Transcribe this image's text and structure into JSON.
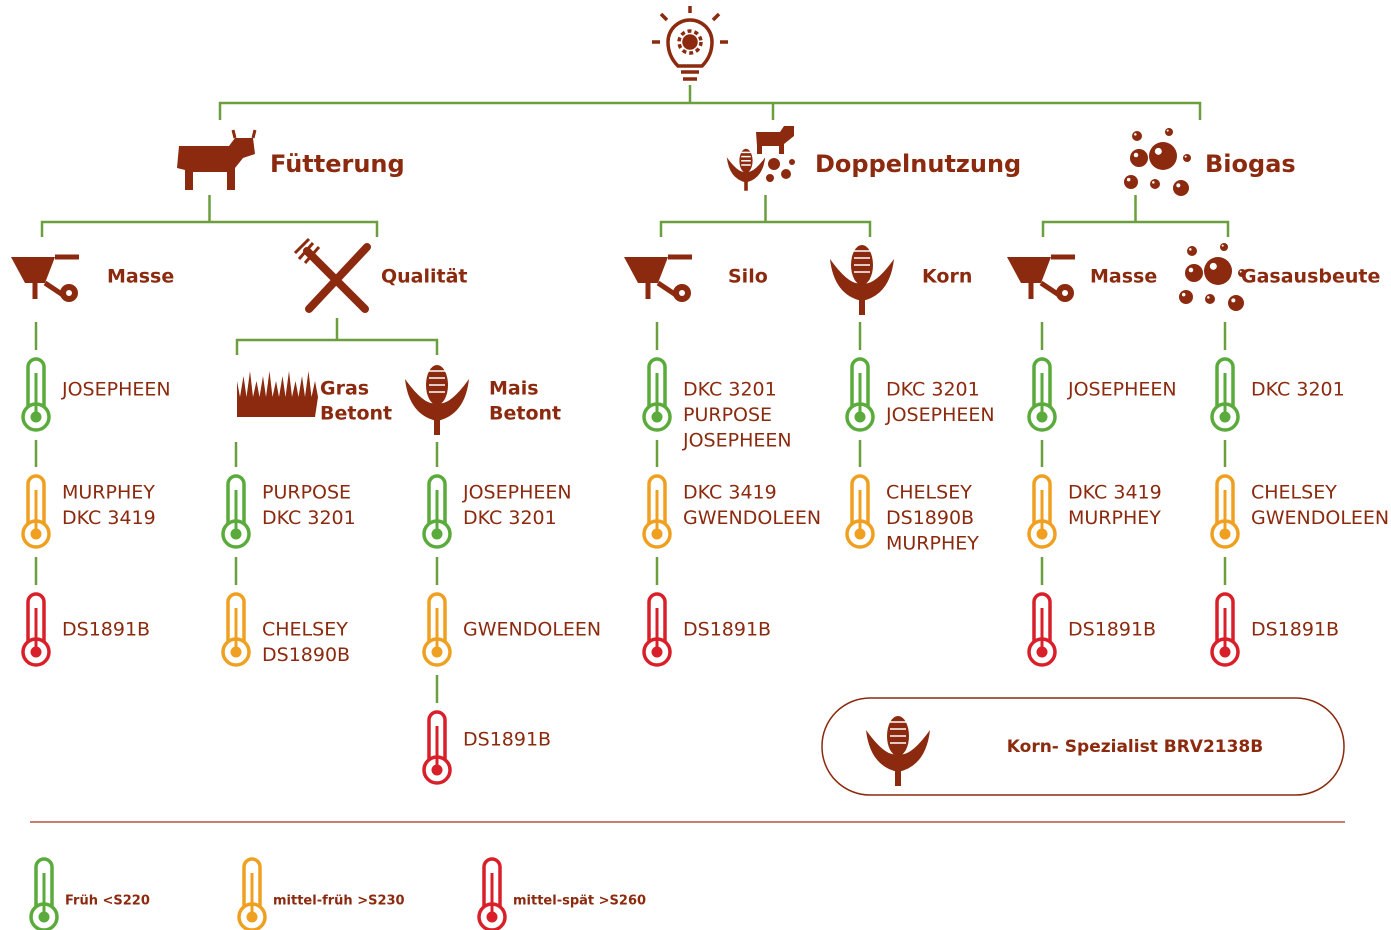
{
  "tree": [
    {
      "label": "Fütterung",
      "children": [
        {
          "label": "Masse",
          "entries": [
            {
              "color": "#5aab3c",
              "lines": [
                "JOSEPHEEN"
              ]
            },
            {
              "color": "#f0a020",
              "lines": [
                "MURPHEY",
                "DKC 3419"
              ]
            },
            {
              "color": "#d9202a",
              "lines": [
                "DS1891B"
              ]
            }
          ]
        },
        {
          "label": "Qualität",
          "children": [
            {
              "label": [
                "Gras",
                "Betont"
              ],
              "entries": [
                {
                  "color": "#5aab3c",
                  "lines": [
                    "PURPOSE",
                    "DKC 3201"
                  ]
                },
                {
                  "color": "#f0a020",
                  "lines": [
                    "CHELSEY",
                    "DS1890B"
                  ]
                }
              ]
            },
            {
              "label": [
                "Mais",
                "Betont"
              ],
              "entries": [
                {
                  "color": "#5aab3c",
                  "lines": [
                    "JOSEPHEEN",
                    "DKC 3201"
                  ]
                },
                {
                  "color": "#f0a020",
                  "lines": [
                    "GWENDOLEEN"
                  ]
                },
                {
                  "color": "#d9202a",
                  "lines": [
                    "DS1891B"
                  ]
                }
              ]
            }
          ]
        }
      ]
    },
    {
      "label": "Doppelnutzung",
      "children": [
        {
          "label": "Silo",
          "entries": [
            {
              "color": "#5aab3c",
              "lines": [
                "DKC 3201",
                "PURPOSE",
                "JOSEPHEEN"
              ]
            },
            {
              "color": "#f0a020",
              "lines": [
                "DKC 3419",
                "GWENDOLEEN"
              ]
            },
            {
              "color": "#d9202a",
              "lines": [
                "DS1891B"
              ]
            }
          ]
        },
        {
          "label": "Korn",
          "entries": [
            {
              "color": "#5aab3c",
              "lines": [
                "DKC 3201",
                "JOSEPHEEN"
              ]
            },
            {
              "color": "#f0a020",
              "lines": [
                "CHELSEY",
                "DS1890B",
                "MURPHEY"
              ]
            }
          ]
        }
      ]
    },
    {
      "label": "Biogas",
      "children": [
        {
          "label": "Masse",
          "entries": [
            {
              "color": "#5aab3c",
              "lines": [
                "JOSEPHEEN"
              ]
            },
            {
              "color": "#f0a020",
              "lines": [
                "DKC 3419",
                "MURPHEY"
              ]
            },
            {
              "color": "#d9202a",
              "lines": [
                "DS1891B"
              ]
            }
          ]
        },
        {
          "label": "Gasausbeute",
          "entries": [
            {
              "color": "#5aab3c",
              "lines": [
                "DKC 3201"
              ]
            },
            {
              "color": "#f0a020",
              "lines": [
                "CHELSEY",
                "GWENDOLEEN"
              ]
            },
            {
              "color": "#d9202a",
              "lines": [
                "DS1891B"
              ]
            }
          ]
        }
      ]
    }
  ],
  "special": "Korn- Spezialist BRV2138B",
  "legend": [
    {
      "color": "#5aab3c",
      "label": "Früh <S220"
    },
    {
      "color": "#f0a020",
      "label": "mittel-früh >S230"
    },
    {
      "color": "#d9202a",
      "label": "mittel-spät >S260"
    }
  ]
}
